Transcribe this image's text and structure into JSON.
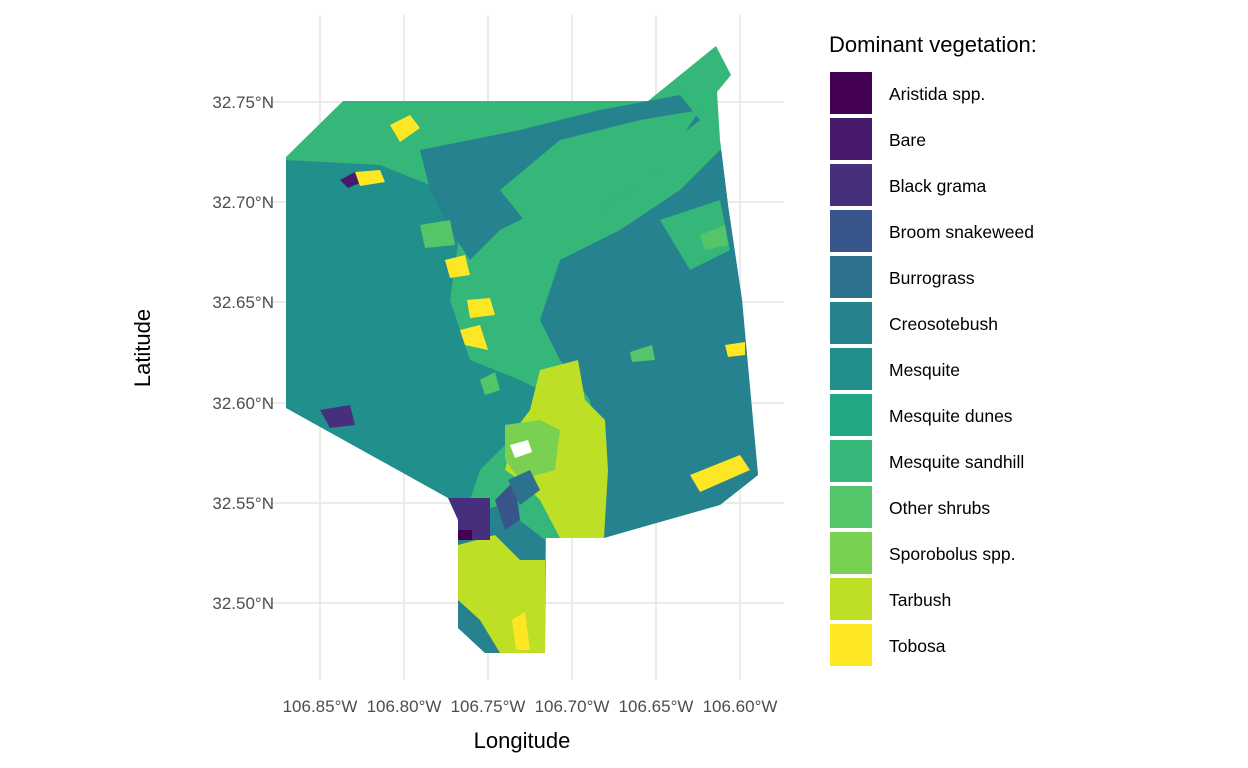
{
  "axes": {
    "x_title": "Longitude",
    "y_title": "Latitude",
    "x_ticks": [
      "106.85°W",
      "106.80°W",
      "106.75°W",
      "106.70°W",
      "106.65°W",
      "106.60°W"
    ],
    "y_ticks": [
      "32.75°N",
      "32.70°N",
      "32.65°N",
      "32.60°N",
      "32.55°N",
      "32.50°N"
    ]
  },
  "legend": {
    "title": "Dominant vegetation:",
    "items": [
      {
        "label": "Aristida spp.",
        "color": "#440154"
      },
      {
        "label": "Bare",
        "color": "#481a6c"
      },
      {
        "label": "Black grama",
        "color": "#472f7d"
      },
      {
        "label": "Broom snakeweed",
        "color": "#39568c"
      },
      {
        "label": "Burrograss",
        "color": "#2c728e"
      },
      {
        "label": "Creosotebush",
        "color": "#26828e"
      },
      {
        "label": "Mesquite",
        "color": "#21908d"
      },
      {
        "label": "Mesquite dunes",
        "color": "#22a884"
      },
      {
        "label": "Mesquite sandhill",
        "color": "#35b779"
      },
      {
        "label": "Other shrubs",
        "color": "#54c568"
      },
      {
        "label": "Sporobolus spp.",
        "color": "#7ad151"
      },
      {
        "label": "Tarbush",
        "color": "#bddf26"
      },
      {
        "label": "Tobosa",
        "color": "#fde725"
      }
    ]
  }
}
